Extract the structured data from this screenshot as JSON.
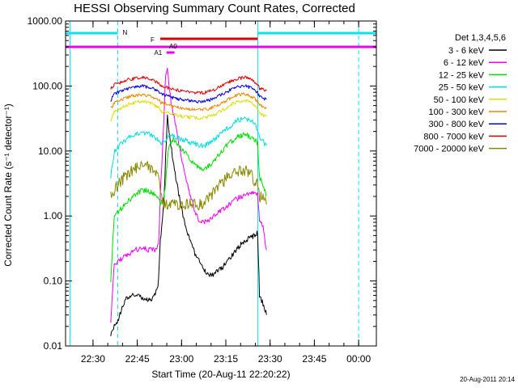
{
  "chart_data": {
    "type": "line",
    "title": "HESSI Observing Summary Count Rates, Corrected",
    "xlabel": "Start Time (20-Aug-11 22:20:22)",
    "ylabel": "Corrected Count Rate (s⁻¹ detector⁻¹)",
    "y_scale": "log",
    "ylim": [
      0.01,
      1000
    ],
    "y_ticks": [
      "0.01",
      "0.10",
      "1.00",
      "10.00",
      "100.00",
      "1000.00"
    ],
    "x_ticks": [
      "22:30",
      "22:45",
      "23:00",
      "23:15",
      "23:30",
      "23:45",
      "00:00"
    ],
    "legend_title": "Det 1,3,4,5,6",
    "legend_position": "right",
    "footer": "20-Aug-2011 20:14",
    "bars": [
      {
        "label": "N",
        "color": "#00e5ee"
      },
      {
        "label": "F",
        "color": "#e00000"
      },
      {
        "label": "A0",
        "color": "#ee00ee"
      },
      {
        "label": "A1",
        "color": "#ee00ee"
      }
    ],
    "series": [
      {
        "name": "3 - 6 keV",
        "color": "#000000",
        "points": [
          [
            22.6,
            0.015
          ],
          [
            22.62,
            0.02
          ],
          [
            22.64,
            0.025
          ],
          [
            22.66,
            0.035
          ],
          [
            22.68,
            0.05
          ],
          [
            22.7,
            0.058
          ],
          [
            22.72,
            0.06
          ],
          [
            22.74,
            0.058
          ],
          [
            22.76,
            0.06
          ],
          [
            22.78,
            0.055
          ],
          [
            22.8,
            0.052
          ],
          [
            22.82,
            0.05
          ],
          [
            22.84,
            0.055
          ],
          [
            22.86,
            0.07
          ],
          [
            22.87,
            0.1
          ],
          [
            22.88,
            0.4
          ],
          [
            22.9,
            1.5
          ],
          [
            22.91,
            8
          ],
          [
            22.92,
            35
          ],
          [
            22.93,
            20
          ],
          [
            22.94,
            12
          ],
          [
            22.96,
            5
          ],
          [
            22.98,
            2.5
          ],
          [
            23.0,
            1.3
          ],
          [
            23.02,
            0.7
          ],
          [
            23.05,
            0.4
          ],
          [
            23.08,
            0.25
          ],
          [
            23.11,
            0.18
          ],
          [
            23.14,
            0.13
          ],
          [
            23.17,
            0.12
          ],
          [
            23.2,
            0.14
          ],
          [
            23.23,
            0.16
          ],
          [
            23.26,
            0.2
          ],
          [
            23.29,
            0.26
          ],
          [
            23.32,
            0.33
          ],
          [
            23.35,
            0.4
          ],
          [
            23.38,
            0.45
          ],
          [
            23.41,
            0.5
          ],
          [
            23.43,
            0.55
          ],
          [
            23.44,
            0.06
          ],
          [
            23.46,
            0.045
          ],
          [
            23.48,
            0.03
          ]
        ]
      },
      {
        "name": "6 - 12 keV",
        "color": "#ee00ee",
        "points": [
          [
            22.6,
            0.025
          ],
          [
            22.62,
            0.18
          ],
          [
            22.66,
            0.22
          ],
          [
            22.7,
            0.25
          ],
          [
            22.74,
            0.3
          ],
          [
            22.78,
            0.32
          ],
          [
            22.82,
            0.3
          ],
          [
            22.85,
            0.3
          ],
          [
            22.87,
            0.35
          ],
          [
            22.88,
            2
          ],
          [
            22.9,
            30
          ],
          [
            22.91,
            150
          ],
          [
            22.92,
            200
          ],
          [
            22.93,
            90
          ],
          [
            22.94,
            60
          ],
          [
            22.96,
            30
          ],
          [
            22.98,
            15
          ],
          [
            23.0,
            8
          ],
          [
            23.02,
            4
          ],
          [
            23.05,
            2
          ],
          [
            23.08,
            1.1
          ],
          [
            23.1,
            0.85
          ],
          [
            23.13,
            0.8
          ],
          [
            23.16,
            0.9
          ],
          [
            23.2,
            1.1
          ],
          [
            23.24,
            1.3
          ],
          [
            23.28,
            1.6
          ],
          [
            23.32,
            1.9
          ],
          [
            23.36,
            2.1
          ],
          [
            23.4,
            2.2
          ],
          [
            23.43,
            2.1
          ],
          [
            23.44,
            0.8
          ],
          [
            23.46,
            0.7
          ],
          [
            23.48,
            0.3
          ]
        ]
      },
      {
        "name": "12 - 25 keV",
        "color": "#00dd00",
        "points": [
          [
            22.6,
            0.1
          ],
          [
            22.62,
            1.0
          ],
          [
            22.66,
            1.3
          ],
          [
            22.7,
            1.7
          ],
          [
            22.74,
            2.2
          ],
          [
            22.78,
            2.5
          ],
          [
            22.82,
            2.4
          ],
          [
            22.85,
            2.1
          ],
          [
            22.87,
            2.0
          ],
          [
            22.88,
            1.5
          ],
          [
            22.9,
            2
          ],
          [
            22.91,
            3
          ],
          [
            22.92,
            8
          ],
          [
            22.93,
            12
          ],
          [
            22.95,
            15
          ],
          [
            22.98,
            13
          ],
          [
            23.01,
            10
          ],
          [
            23.04,
            8
          ],
          [
            23.07,
            6.5
          ],
          [
            23.1,
            5.5
          ],
          [
            23.13,
            5.3
          ],
          [
            23.16,
            6
          ],
          [
            23.2,
            8
          ],
          [
            23.24,
            11
          ],
          [
            23.28,
            14
          ],
          [
            23.32,
            17
          ],
          [
            23.36,
            18
          ],
          [
            23.4,
            16
          ],
          [
            23.43,
            13
          ],
          [
            23.44,
            4
          ],
          [
            23.46,
            3
          ],
          [
            23.48,
            2
          ]
        ]
      },
      {
        "name": "25 - 50 keV",
        "color": "#00dddd",
        "points": [
          [
            22.6,
            4
          ],
          [
            22.62,
            10
          ],
          [
            22.66,
            13
          ],
          [
            22.7,
            16
          ],
          [
            22.74,
            18
          ],
          [
            22.78,
            19
          ],
          [
            22.82,
            18
          ],
          [
            22.85,
            16
          ],
          [
            22.87,
            15
          ],
          [
            22.88,
            13
          ],
          [
            22.9,
            14
          ],
          [
            22.92,
            16
          ],
          [
            22.95,
            17
          ],
          [
            22.98,
            16
          ],
          [
            23.01,
            15
          ],
          [
            23.04,
            14
          ],
          [
            23.07,
            13
          ],
          [
            23.1,
            12
          ],
          [
            23.13,
            12
          ],
          [
            23.16,
            13.5
          ],
          [
            23.2,
            16
          ],
          [
            23.24,
            20
          ],
          [
            23.28,
            25
          ],
          [
            23.32,
            30
          ],
          [
            23.36,
            32
          ],
          [
            23.4,
            28
          ],
          [
            23.43,
            22
          ],
          [
            23.44,
            15
          ],
          [
            23.46,
            14
          ],
          [
            23.48,
            12
          ]
        ]
      },
      {
        "name": "50 - 100 keV",
        "color": "#dddd00",
        "points": [
          [
            22.6,
            30
          ],
          [
            22.62,
            40
          ],
          [
            22.66,
            46
          ],
          [
            22.7,
            52
          ],
          [
            22.74,
            56
          ],
          [
            22.78,
            58
          ],
          [
            22.82,
            55
          ],
          [
            22.85,
            50
          ],
          [
            22.87,
            47
          ],
          [
            22.88,
            42
          ],
          [
            22.9,
            40
          ],
          [
            22.93,
            38
          ],
          [
            22.96,
            36
          ],
          [
            23.0,
            34
          ],
          [
            23.04,
            33
          ],
          [
            23.08,
            32
          ],
          [
            23.12,
            32
          ],
          [
            23.16,
            34
          ],
          [
            23.2,
            38
          ],
          [
            23.24,
            44
          ],
          [
            23.28,
            52
          ],
          [
            23.32,
            58
          ],
          [
            23.36,
            60
          ],
          [
            23.4,
            54
          ],
          [
            23.43,
            46
          ],
          [
            23.44,
            38
          ],
          [
            23.46,
            36
          ],
          [
            23.48,
            34
          ]
        ]
      },
      {
        "name": "100 - 300 keV",
        "color": "#ee8800",
        "points": [
          [
            22.6,
            45
          ],
          [
            22.62,
            55
          ],
          [
            22.66,
            62
          ],
          [
            22.7,
            68
          ],
          [
            22.74,
            72
          ],
          [
            22.78,
            74
          ],
          [
            22.82,
            70
          ],
          [
            22.85,
            65
          ],
          [
            22.87,
            62
          ],
          [
            22.88,
            56
          ],
          [
            22.9,
            54
          ],
          [
            22.93,
            51
          ],
          [
            22.96,
            48
          ],
          [
            23.0,
            46
          ],
          [
            23.04,
            44
          ],
          [
            23.08,
            43
          ],
          [
            23.12,
            43
          ],
          [
            23.16,
            45
          ],
          [
            23.2,
            50
          ],
          [
            23.24,
            57
          ],
          [
            23.28,
            66
          ],
          [
            23.32,
            73
          ],
          [
            23.36,
            75
          ],
          [
            23.4,
            68
          ],
          [
            23.43,
            58
          ],
          [
            23.44,
            50
          ],
          [
            23.46,
            48
          ],
          [
            23.48,
            46
          ]
        ]
      },
      {
        "name": "300 - 800 keV",
        "color": "#0000dd",
        "points": [
          [
            22.6,
            60
          ],
          [
            22.62,
            75
          ],
          [
            22.66,
            85
          ],
          [
            22.7,
            92
          ],
          [
            22.74,
            97
          ],
          [
            22.78,
            100
          ],
          [
            22.82,
            95
          ],
          [
            22.85,
            88
          ],
          [
            22.87,
            84
          ],
          [
            22.88,
            76
          ],
          [
            22.9,
            73
          ],
          [
            22.93,
            69
          ],
          [
            22.96,
            65
          ],
          [
            23.0,
            62
          ],
          [
            23.04,
            60
          ],
          [
            23.08,
            58
          ],
          [
            23.12,
            58
          ],
          [
            23.16,
            61
          ],
          [
            23.2,
            68
          ],
          [
            23.24,
            77
          ],
          [
            23.28,
            88
          ],
          [
            23.32,
            97
          ],
          [
            23.36,
            100
          ],
          [
            23.4,
            92
          ],
          [
            23.43,
            78
          ],
          [
            23.44,
            68
          ],
          [
            23.46,
            65
          ],
          [
            23.48,
            62
          ]
        ]
      },
      {
        "name": "800 - 7000 keV",
        "color": "#dd0000",
        "points": [
          [
            22.6,
            90
          ],
          [
            22.62,
            105
          ],
          [
            22.66,
            115
          ],
          [
            22.7,
            125
          ],
          [
            22.74,
            132
          ],
          [
            22.78,
            135
          ],
          [
            22.82,
            128
          ],
          [
            22.85,
            118
          ],
          [
            22.87,
            112
          ],
          [
            22.88,
            102
          ],
          [
            22.9,
            98
          ],
          [
            22.93,
            93
          ],
          [
            22.96,
            88
          ],
          [
            23.0,
            84
          ],
          [
            23.04,
            81
          ],
          [
            23.08,
            79
          ],
          [
            23.12,
            79
          ],
          [
            23.16,
            83
          ],
          [
            23.2,
            92
          ],
          [
            23.24,
            104
          ],
          [
            23.28,
            118
          ],
          [
            23.32,
            130
          ],
          [
            23.36,
            135
          ],
          [
            23.4,
            124
          ],
          [
            23.43,
            106
          ],
          [
            23.44,
            92
          ],
          [
            23.46,
            88
          ],
          [
            23.48,
            84
          ]
        ]
      },
      {
        "name": "7000 - 20000 keV",
        "color": "#888800",
        "points": [
          [
            22.6,
            2
          ],
          [
            22.62,
            2.5
          ],
          [
            22.66,
            3.5
          ],
          [
            22.7,
            4.5
          ],
          [
            22.74,
            5.5
          ],
          [
            22.78,
            6
          ],
          [
            22.82,
            5.5
          ],
          [
            22.85,
            4.5
          ],
          [
            22.87,
            4
          ],
          [
            22.88,
            2.5
          ],
          [
            22.9,
            1.5
          ],
          [
            22.93,
            1.5
          ],
          [
            22.96,
            1.5
          ],
          [
            23.0,
            1.5
          ],
          [
            23.04,
            1.5
          ],
          [
            23.08,
            1.5
          ],
          [
            23.12,
            1.5
          ],
          [
            23.16,
            2
          ],
          [
            23.2,
            2.7
          ],
          [
            23.24,
            3.5
          ],
          [
            23.28,
            4.5
          ],
          [
            23.32,
            5
          ],
          [
            23.36,
            5
          ],
          [
            23.4,
            4
          ],
          [
            23.43,
            3
          ],
          [
            23.44,
            2
          ],
          [
            23.46,
            2
          ],
          [
            23.48,
            1.5
          ]
        ]
      }
    ]
  }
}
